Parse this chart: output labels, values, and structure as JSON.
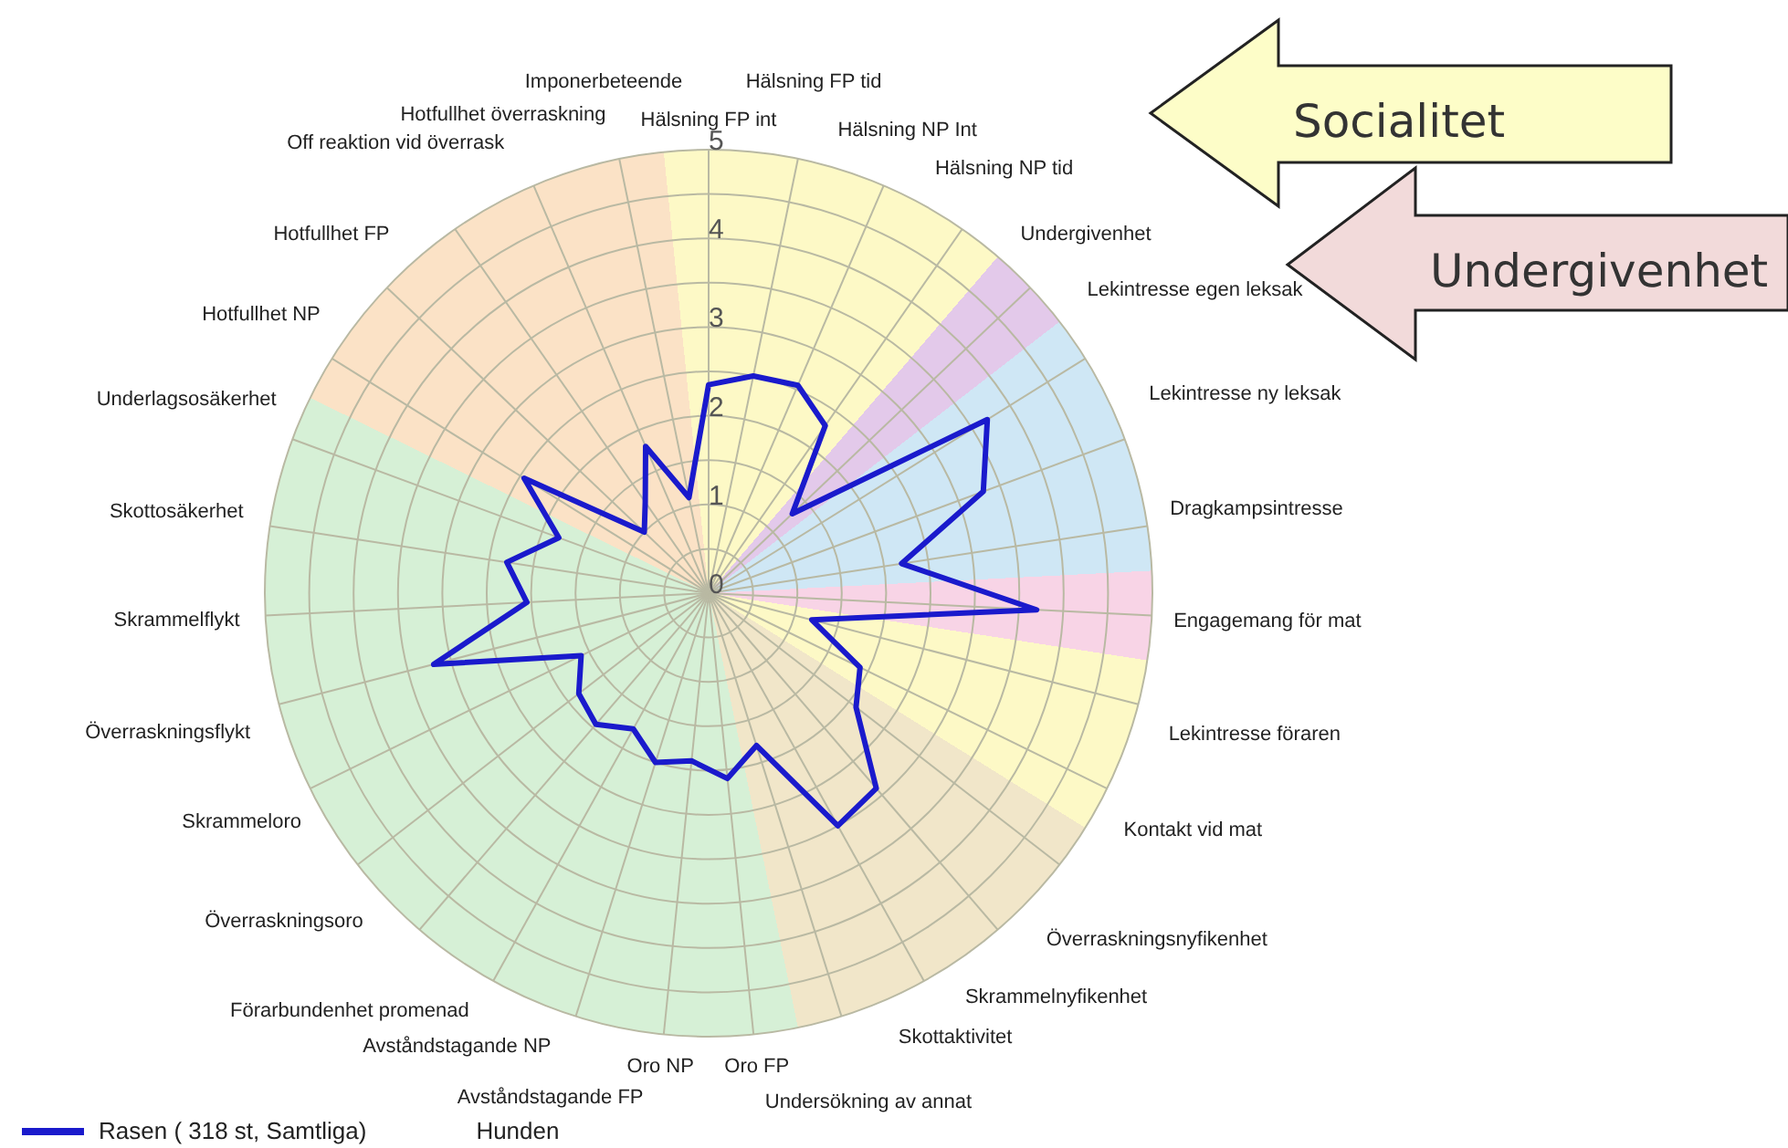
{
  "chart_data": {
    "type": "radar",
    "categories": [
      "Hälsning FP int",
      "Hälsning FP tid",
      "Hälsning NP Int",
      "Hälsning NP tid",
      "Undergivenhet",
      "Lekintresse egen leksak",
      "Lekintresse ny leksak",
      "Dragkampsintresse",
      "Engagemang för mat",
      "Lekintresse föraren",
      "Kontakt vid mat",
      "Överraskningsnyfikenhet",
      "Skrammelnyfikenhet",
      "Skottaktivitet",
      "Undersökning av annat",
      "Oro FP",
      "Oro NP",
      "Avståndstagande FP",
      "Avståndstagande NP",
      "Förarbundenhet promenad",
      "Överraskningsoro",
      "Skrammeloro",
      "Överraskningsflykt",
      "Skrammelflykt",
      "Skottosäkerhet",
      "Underlagsosäkerhet",
      "Hotfullhet NP",
      "Hotfullhet FP",
      "Off reaktion vid överrask",
      "Hotfullhet överraskning",
      "Imponerbeteende"
    ],
    "series": [
      {
        "name": "Rasen ( 318 st, Samtliga)",
        "color": "#1a1acc",
        "values": [
          2.35,
          2.5,
          2.55,
          2.3,
          1.3,
          3.7,
          3.3,
          2.2,
          3.7,
          1.2,
          1.9,
          2.1,
          2.9,
          3.0,
          1.8,
          2.1,
          1.9,
          2.0,
          1.75,
          1.95,
          1.85,
          1.6,
          3.2,
          2.05,
          2.3,
          1.8,
          2.45,
          1.0,
          1.25,
          1.8,
          1.1
        ]
      }
    ],
    "ylim": [
      0,
      5
    ],
    "yticks": [
      0,
      1,
      2,
      3,
      4,
      5
    ],
    "grid": true,
    "legend": "bottom left",
    "annotations": [
      "Socialitet",
      "Undergivenhet",
      "Hunden"
    ]
  }
}
